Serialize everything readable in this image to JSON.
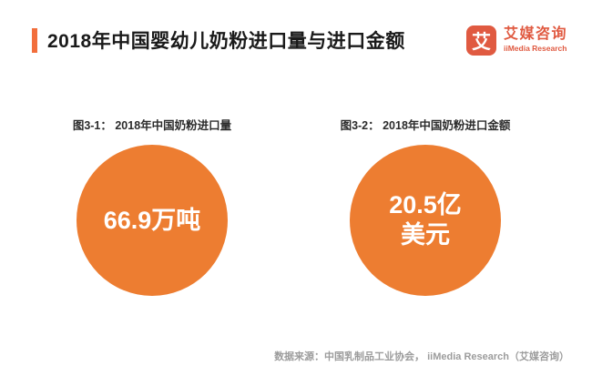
{
  "colors": {
    "accent_bar": "#F26E3C",
    "bubble": "#ED7D31",
    "logo": "#E05A41",
    "title_text": "#1A1A1A",
    "footer_text": "#9C9C9C"
  },
  "header": {
    "title": "2018年中国婴幼儿奶粉进口量与进口金额"
  },
  "logo": {
    "icon_char": "艾",
    "name_cn": "艾媒咨询",
    "name_en": "iiMedia Research"
  },
  "figures": [
    {
      "caption": "图3-1：  2018年中国奶粉进口量",
      "lines": [
        "66.9万吨"
      ]
    },
    {
      "caption": "图3-2：  2018年中国奶粉进口金额",
      "lines": [
        "20.5亿",
        "美元"
      ]
    }
  ],
  "footer": {
    "source": "数据来源：中国乳制品工业协会，  iiMedia Research（艾媒咨询）"
  },
  "chart_data": [
    {
      "type": "bubble",
      "title": "图3-1：  2018年中国奶粉进口量",
      "categories": [
        "2018年中国奶粉进口量"
      ],
      "values": [
        66.9
      ],
      "unit": "万吨",
      "data_label": "66.9万吨",
      "bubble_color": "#ED7D31",
      "legend": "off",
      "grid": "off"
    },
    {
      "type": "bubble",
      "title": "图3-2：  2018年中国奶粉进口金额",
      "categories": [
        "2018年中国奶粉进口金额"
      ],
      "values": [
        20.5
      ],
      "unit": "亿美元",
      "data_label": "20.5亿美元",
      "bubble_color": "#ED7D31",
      "legend": "off",
      "grid": "off"
    }
  ]
}
